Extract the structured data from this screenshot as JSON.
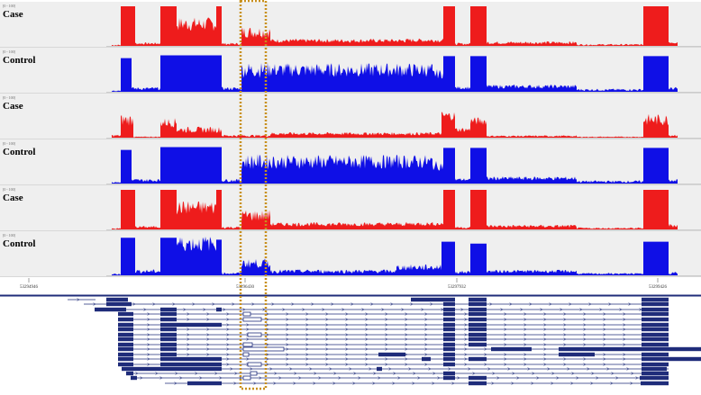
{
  "tracks": [
    {
      "label": "Case",
      "range": "[0 - 100]",
      "condition": "case",
      "profile": "high"
    },
    {
      "label": "Control",
      "range": "[0 - 100]",
      "condition": "control",
      "profile": "mid"
    },
    {
      "label": "Case",
      "range": "[0 - 100]",
      "condition": "case",
      "profile": "low"
    },
    {
      "label": "Control",
      "range": "[0 - 100]",
      "condition": "control",
      "profile": "mid"
    },
    {
      "label": "Case",
      "range": "[0 - 100]",
      "condition": "case",
      "profile": "high"
    },
    {
      "label": "Control",
      "range": "[0 - 100]",
      "condition": "control",
      "profile": "low2"
    }
  ],
  "ruler": {
    "ticks": [
      "53294946",
      "53296430",
      "53297932",
      "53299426"
    ]
  },
  "colors": {
    "case": "#ee1c1c",
    "control": "#0f0fe6",
    "track_background": "#efefef",
    "annotation": "#1f2c7a",
    "highlight_box": "#c8901e"
  }
}
